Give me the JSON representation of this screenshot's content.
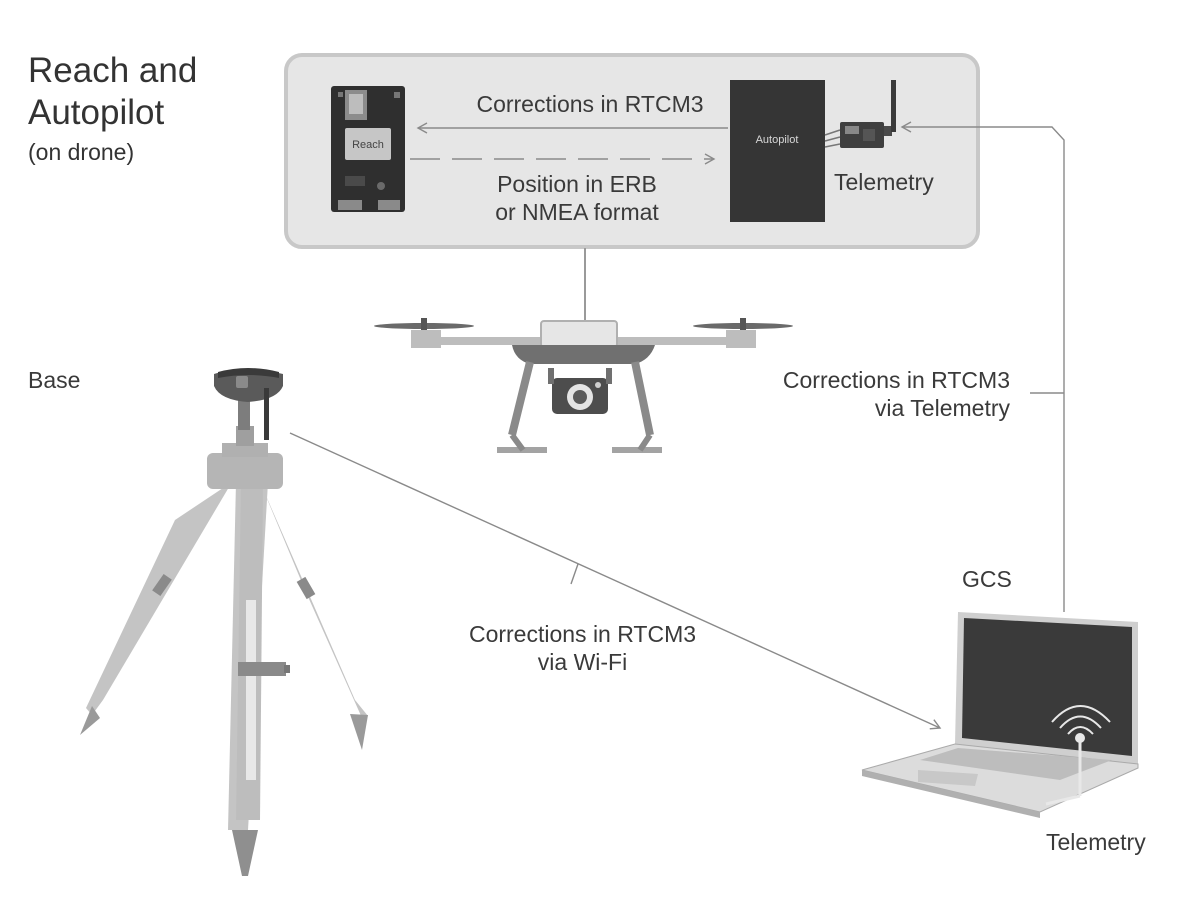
{
  "diagram": {
    "title_line1": "Reach and",
    "title_line2": "Autopilot",
    "subtitle": "(on drone)",
    "labels": {
      "base": "Base",
      "gcs": "GCS",
      "reach_board": "Reach",
      "autopilot_box": "Autopilot",
      "telemetry_top": "Telemetry",
      "telemetry_bottom": "Telemetry"
    },
    "arrows": {
      "rtcm_top": "Corrections in RTCM3",
      "position_line1": "Position in ERB",
      "position_line2": "or NMEA format",
      "rtcm_telemetry_line1": "Corrections in RTCM3",
      "rtcm_telemetry_line2": "via Telemetry",
      "rtcm_wifi_line1": "Corrections in RTCM3",
      "rtcm_wifi_line2": "via Wi-Fi"
    }
  },
  "colors": {
    "panel_fill": "#e6e6e6",
    "panel_border": "#c8c8c8",
    "device_dark": "#353535",
    "tripod": "#c4c4c4",
    "connector_line": "#9a9a9a"
  }
}
